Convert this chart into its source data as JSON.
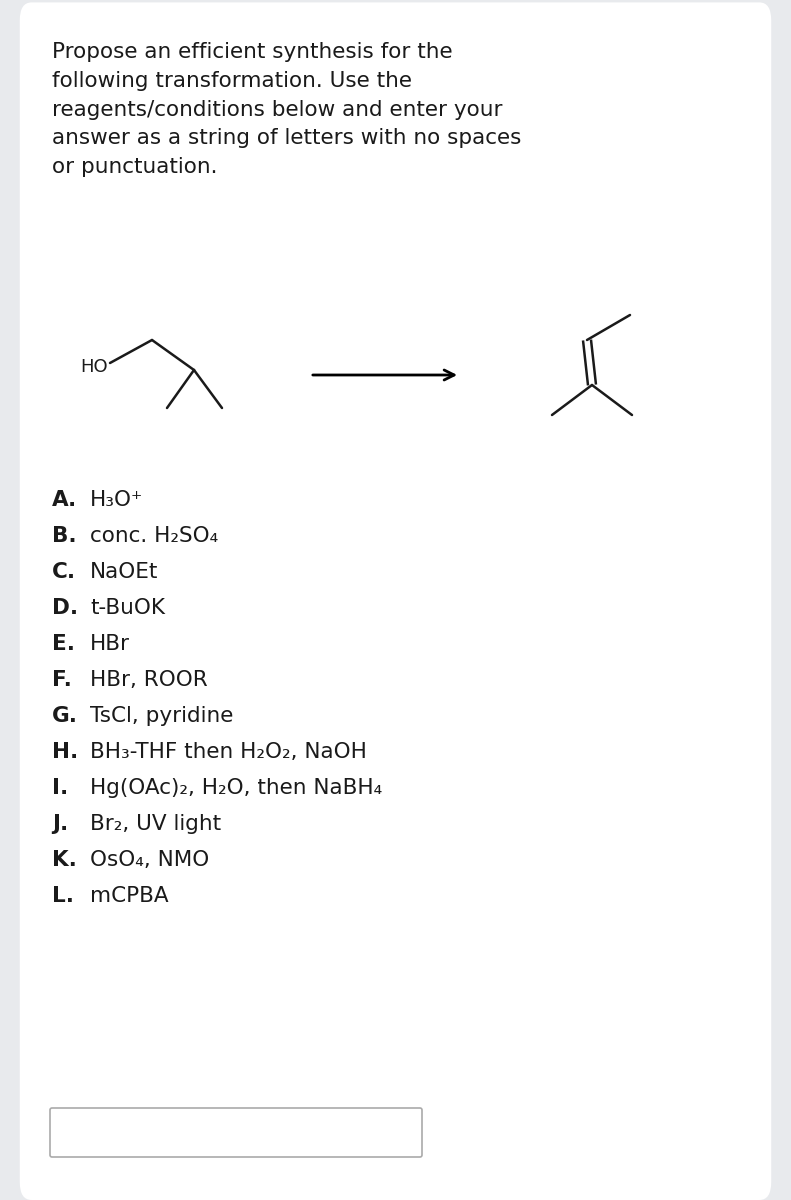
{
  "bg_color": "#e8eaed",
  "card_color": "#ffffff",
  "title_text": "Propose an efficient synthesis for the\nfollowing transformation. Use the\nreagents/conditions below and enter your\nanswer as a string of letters with no spaces\nor punctuation.",
  "reagents": [
    {
      "label": "A.",
      "text": "H₃O⁺"
    },
    {
      "label": "B.",
      "text": "conc. H₂SO₄"
    },
    {
      "label": "C.",
      "text": "NaOEt"
    },
    {
      "label": "D.",
      "text": "t-BuOK"
    },
    {
      "label": "E.",
      "text": "HBr"
    },
    {
      "label": "F.",
      "text": "HBr, ROOR"
    },
    {
      "label": "G.",
      "text": "TsCl, pyridine"
    },
    {
      "label": "H.",
      "text": "BH₃-THF then H₂O₂, NaOH"
    },
    {
      "label": "I.",
      "text": "Hg(OAc)₂, H₂O, then NaBH₄"
    },
    {
      "label": "J.",
      "text": "Br₂, UV light"
    },
    {
      "label": "K.",
      "text": "OsO₄, NMO"
    },
    {
      "label": "L.",
      "text": "mCPBA"
    }
  ],
  "font_size_title": 15.5,
  "font_size_reagents": 15.5,
  "text_color": "#1a1a1a",
  "mol_lw": 1.8
}
